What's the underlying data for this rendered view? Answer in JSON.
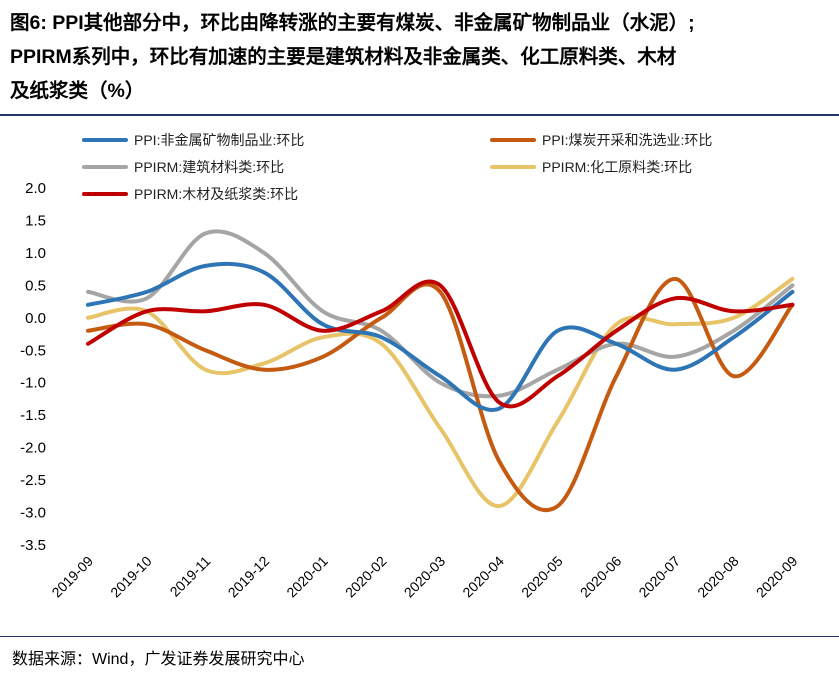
{
  "title": {
    "line1": "图6: PPI其他部分中，环比由降转涨的主要有煤炭、非金属矿物制品业（水泥）;",
    "line2": "PPIRM系列中，环比有加速的主要是建筑材料及非金属类、化工原料类、木材",
    "line3": "及纸浆类（%）"
  },
  "source": "数据来源：Wind，广发证券发展研究中心",
  "chart_data": {
    "type": "line",
    "title": "PPI其他部分中，环比由降转涨的主要有煤炭、非金属矿物制品业（水泥）; PPIRM系列中，环比有加速的主要是建筑材料及非金属类、化工原料类、木材及纸浆类（%）",
    "xlabel": "",
    "ylabel": "%",
    "categories": [
      "2019-09",
      "2019-10",
      "2019-11",
      "2019-12",
      "2020-01",
      "2020-02",
      "2020-03",
      "2020-04",
      "2020-05",
      "2020-06",
      "2020-07",
      "2020-08",
      "2020-09"
    ],
    "ylim": [
      -3.5,
      2.0
    ],
    "yticks": [
      "2.0",
      "1.5",
      "1.0",
      "0.5",
      "0.0",
      "-0.5",
      "-1.0",
      "-1.5",
      "-2.0",
      "-2.5",
      "-3.0",
      "-3.5"
    ],
    "smooth": true,
    "series": [
      {
        "name": "PPI:非金属矿物制品业:环比",
        "color": "#2e75b6",
        "values": [
          0.2,
          0.4,
          0.8,
          0.7,
          -0.1,
          -0.3,
          -0.9,
          -1.4,
          -0.2,
          -0.4,
          -0.8,
          -0.3,
          0.4
        ]
      },
      {
        "name": "PPI:煤炭开采和洗选业:环比",
        "color": "#c55a11",
        "values": [
          -0.2,
          -0.1,
          -0.5,
          -0.8,
          -0.6,
          0.0,
          0.4,
          -2.2,
          -2.9,
          -0.9,
          0.6,
          -0.9,
          0.2
        ]
      },
      {
        "name": "PPIRM:建筑材料类:环比",
        "color": "#a5a5a5",
        "values": [
          0.4,
          0.3,
          1.3,
          1.0,
          0.1,
          -0.2,
          -1.0,
          -1.2,
          -0.8,
          -0.4,
          -0.6,
          -0.2,
          0.5
        ]
      },
      {
        "name": "PPIRM:化工原料类:环比",
        "color": "#e8c468",
        "values": [
          0.0,
          0.1,
          -0.8,
          -0.7,
          -0.3,
          -0.4,
          -1.7,
          -2.9,
          -1.6,
          -0.1,
          -0.1,
          0.0,
          0.6
        ]
      },
      {
        "name": "PPIRM:木材及纸浆类:环比",
        "color": "#c00000",
        "values": [
          -0.4,
          0.1,
          0.1,
          0.2,
          -0.2,
          0.1,
          0.5,
          -1.3,
          -0.9,
          -0.2,
          0.3,
          0.1,
          0.2
        ]
      }
    ]
  }
}
